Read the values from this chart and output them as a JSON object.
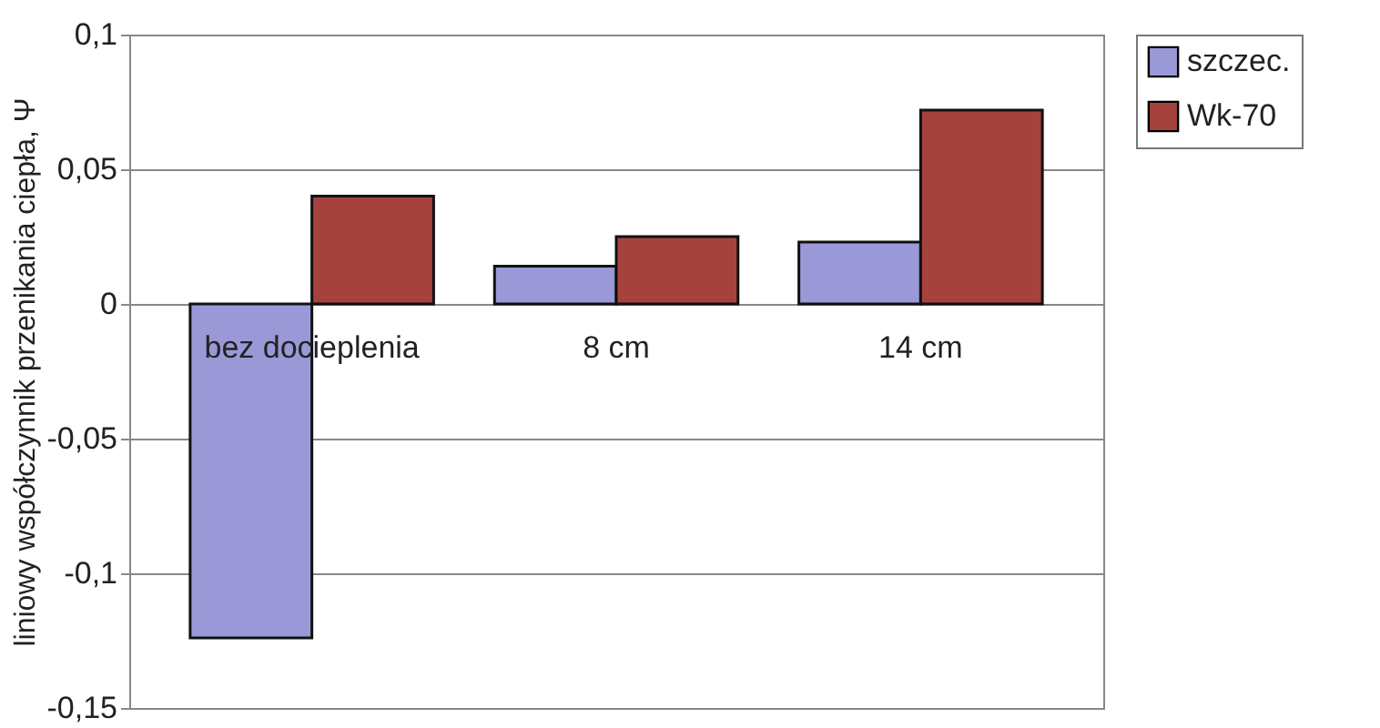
{
  "chart_data": {
    "type": "bar",
    "ylabel": "liniowy współczynnik przenikania ciepła, Ψ",
    "categories": [
      "bez docieplenia",
      "8 cm",
      "14 cm"
    ],
    "series": [
      {
        "name": "szczec.",
        "color": "#9a98d6",
        "values": [
          -0.124,
          0.014,
          0.023
        ]
      },
      {
        "name": "Wk-70",
        "color": "#a6423e",
        "values": [
          0.04,
          0.025,
          0.072
        ]
      }
    ],
    "ylim": [
      -0.15,
      0.1
    ],
    "yticks": [
      {
        "value": -0.15,
        "label": "-0,15"
      },
      {
        "value": -0.1,
        "label": "-0,1"
      },
      {
        "value": -0.05,
        "label": "-0,05"
      },
      {
        "value": 0,
        "label": "0"
      },
      {
        "value": 0.05,
        "label": "0,05"
      },
      {
        "value": 0.1,
        "label": "0,1"
      }
    ],
    "grid": "y",
    "legend": "right"
  }
}
